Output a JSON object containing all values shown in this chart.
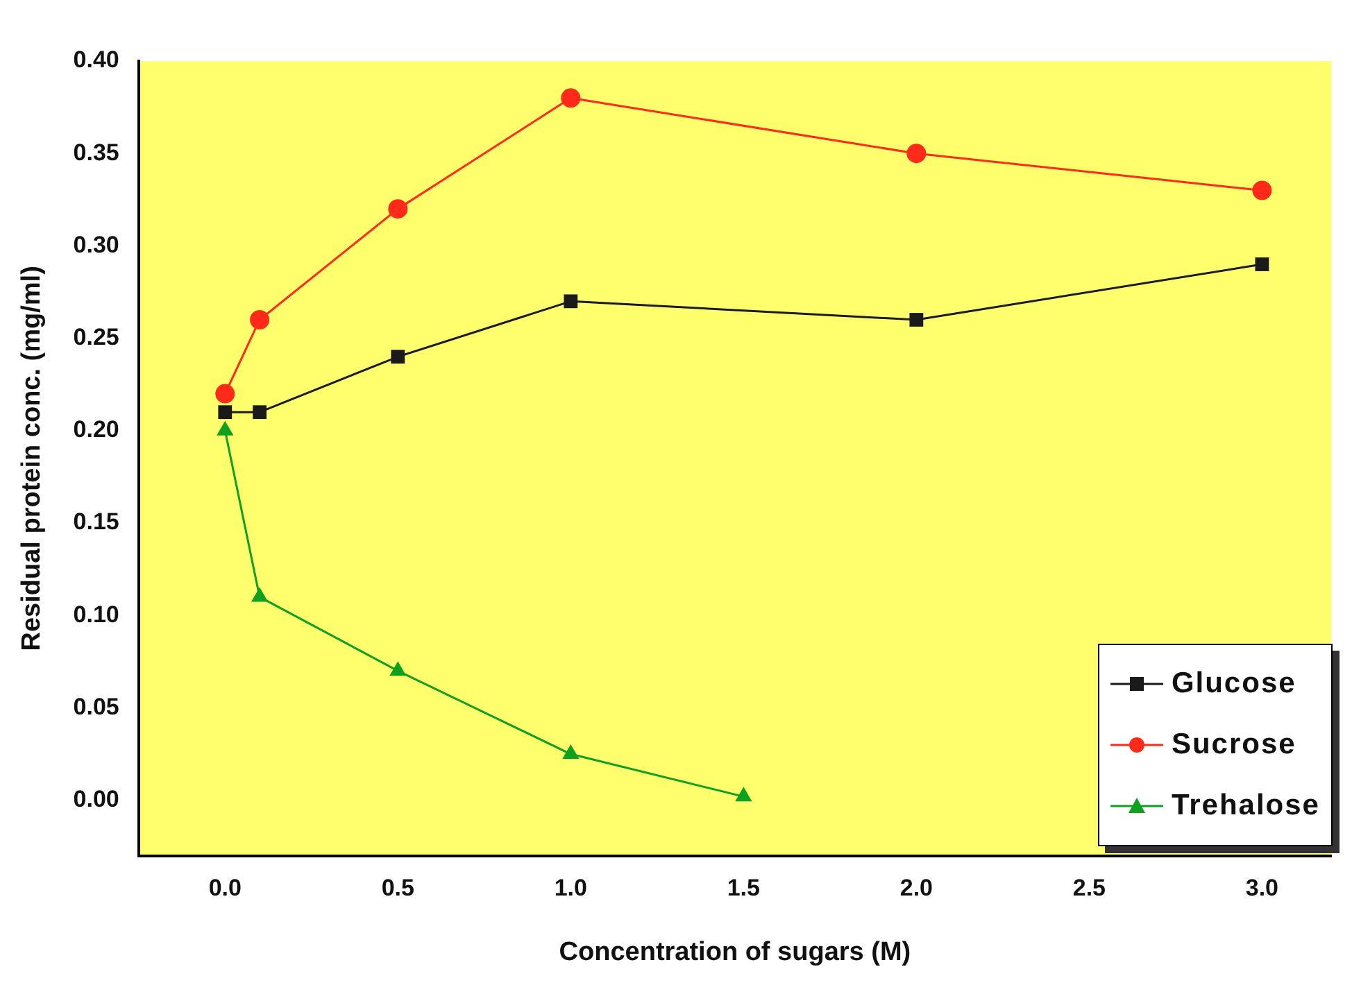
{
  "chart_data": {
    "type": "line",
    "xlabel": "Concentration of sugars (M)",
    "ylabel": "Residual protein conc. (mg/ml)",
    "x": [
      0,
      0.1,
      0.5,
      1.0,
      2.0,
      3.0
    ],
    "series": [
      {
        "name": "Glucose",
        "color": "#1a1a1a",
        "marker": "square",
        "values": [
          0.21,
          0.21,
          0.24,
          0.27,
          0.26,
          0.29
        ]
      },
      {
        "name": "Sucrose",
        "color": "#ff2a1a",
        "marker": "circle",
        "values": [
          0.22,
          0.26,
          0.32,
          0.38,
          0.35,
          0.33
        ]
      },
      {
        "name": "Trehalose",
        "color": "#10a020",
        "marker": "triangle",
        "x": [
          0,
          0.1,
          0.5,
          1.0,
          1.5
        ],
        "values": [
          0.2,
          0.11,
          0.07,
          0.025,
          0.002
        ]
      }
    ],
    "xlim": [
      -0.25,
      3.2
    ],
    "xticks": [
      {
        "value": 0,
        "label": "0.0"
      },
      {
        "value": 0.5,
        "label": "0.5"
      },
      {
        "value": 1.0,
        "label": "1.0"
      },
      {
        "value": 1.5,
        "label": "1.5"
      },
      {
        "value": 2.0,
        "label": "2.0"
      },
      {
        "value": 2.5,
        "label": "2.5"
      },
      {
        "value": 3.0,
        "label": "3.0"
      }
    ],
    "ylim": [
      -0.03,
      0.4
    ],
    "yticks": [
      {
        "value": 0,
        "label": "0.00"
      },
      {
        "value": 0.05,
        "label": "0.05"
      },
      {
        "value": 0.1,
        "label": "0.10"
      },
      {
        "value": 0.15,
        "label": "0.15"
      },
      {
        "value": 0.2,
        "label": "0.20"
      },
      {
        "value": 0.25,
        "label": "0.25"
      },
      {
        "value": 0.3,
        "label": "0.30"
      },
      {
        "value": 0.35,
        "label": "0.35"
      },
      {
        "value": 0.4,
        "label": "0.40"
      }
    ],
    "grid": false,
    "legend": "bottom right",
    "line_style": "solid"
  }
}
